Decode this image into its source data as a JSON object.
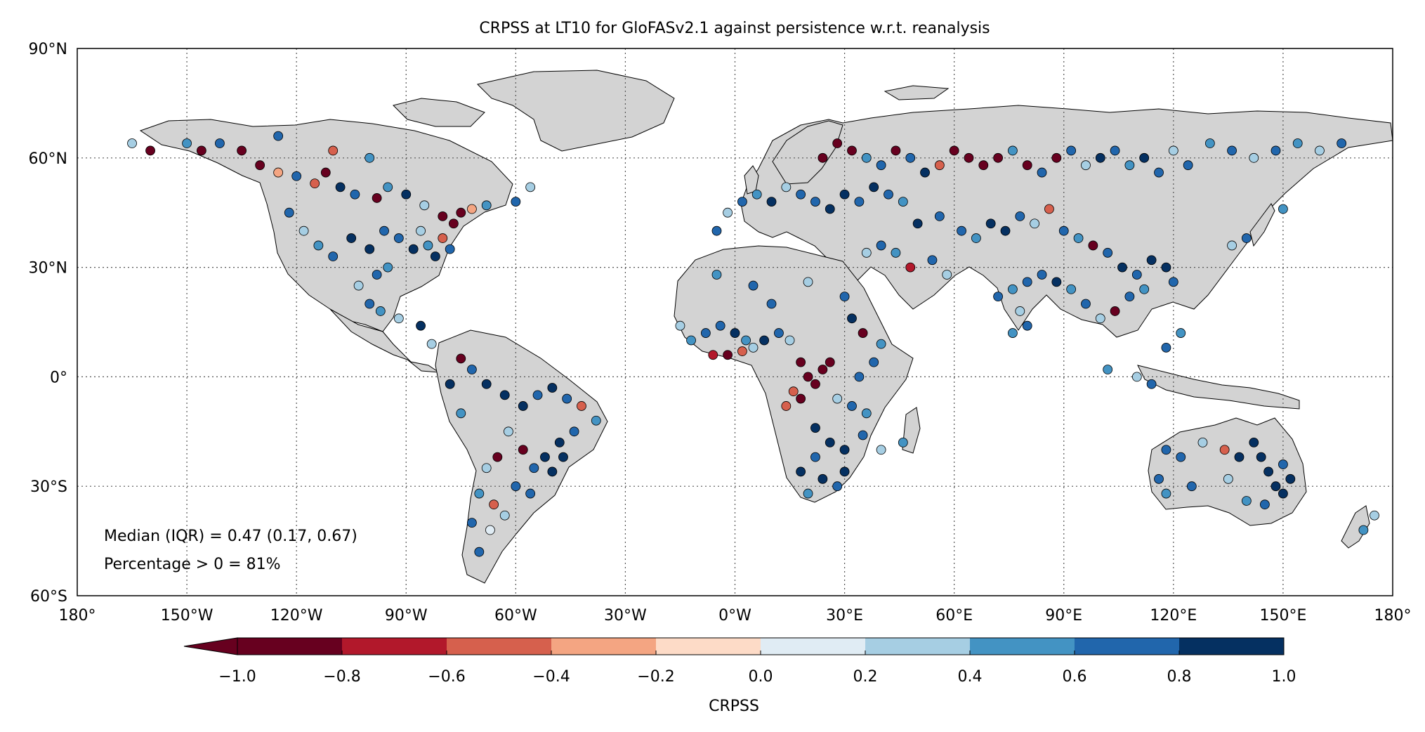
{
  "title": "CRPSS at LT10 for GloFASv2.1 against persistence w.r.t. reanalysis",
  "map": {
    "lat_ticks": [
      "90°N",
      "60°N",
      "30°N",
      "0°",
      "30°S",
      "60°S"
    ],
    "lon_ticks": [
      "180°",
      "150°W",
      "120°W",
      "90°W",
      "60°W",
      "30°W",
      "0°W",
      "30°E",
      "60°E",
      "90°E",
      "120°E",
      "150°E",
      "180°"
    ],
    "land_color": "#d3d3d3",
    "grid": "dotted"
  },
  "stats": {
    "median_line": "Median (IQR) = 0.47 (0.17, 0.67)",
    "percentage_line": "Percentage > 0 = 81%"
  },
  "colorbar": {
    "label": "CRPSS",
    "ticks": [
      "−1.0",
      "−0.8",
      "−0.6",
      "−0.4",
      "−0.2",
      "0.0",
      "0.2",
      "0.4",
      "0.6",
      "0.8",
      "1.0"
    ],
    "colors": [
      "#67001f",
      "#b2182b",
      "#d6604d",
      "#f4a582",
      "#fddbc7",
      "#e0ecf4",
      "#a6cee3",
      "#4393c3",
      "#2166ac",
      "#053061"
    ],
    "extend": "min"
  },
  "chart_data": {
    "type": "scatter",
    "title": "CRPSS at LT10 for GloFASv2.1 against persistence w.r.t. reanalysis",
    "xlim": [
      -180,
      180
    ],
    "ylim": [
      -60,
      90
    ],
    "colorbar_range": [
      -1.0,
      1.0
    ],
    "median": 0.47,
    "iqr": [
      0.17,
      0.67
    ],
    "percentage_positive": 81,
    "series": [
      {
        "points": [
          [
            -150,
            64,
            0.5
          ],
          [
            -146,
            62,
            -0.9
          ],
          [
            -141,
            64,
            0.7
          ],
          [
            -135,
            62,
            -1.0
          ],
          [
            -130,
            58,
            -0.9
          ],
          [
            -125,
            56,
            -0.3
          ],
          [
            -120,
            55,
            0.6
          ],
          [
            -115,
            53,
            -0.5
          ],
          [
            -112,
            56,
            -0.8
          ],
          [
            -108,
            52,
            0.9
          ],
          [
            -104,
            50,
            0.7
          ],
          [
            -98,
            49,
            -0.9
          ],
          [
            -95,
            52,
            0.5
          ],
          [
            -90,
            50,
            0.8
          ],
          [
            -85,
            47,
            0.3
          ],
          [
            -80,
            44,
            -0.9
          ],
          [
            -77,
            42,
            -1.0
          ],
          [
            -75,
            45,
            -0.9
          ],
          [
            -72,
            46,
            -0.3
          ],
          [
            -68,
            47,
            0.5
          ],
          [
            -122,
            45,
            0.6
          ],
          [
            -118,
            40,
            0.4
          ],
          [
            -114,
            36,
            0.5
          ],
          [
            -110,
            33,
            0.7
          ],
          [
            -105,
            38,
            0.8
          ],
          [
            -100,
            35,
            0.9
          ],
          [
            -96,
            40,
            0.6
          ],
          [
            -92,
            38,
            0.7
          ],
          [
            -88,
            35,
            0.9
          ],
          [
            -84,
            36,
            0.5
          ],
          [
            -86,
            40,
            0.4
          ],
          [
            -82,
            33,
            0.8
          ],
          [
            -80,
            38,
            -0.6
          ],
          [
            -78,
            35,
            0.6
          ],
          [
            -95,
            30,
            0.5
          ],
          [
            -98,
            28,
            0.7
          ],
          [
            -103,
            25,
            0.4
          ],
          [
            -100,
            20,
            0.6
          ],
          [
            -97,
            18,
            0.5
          ],
          [
            -92,
            16,
            0.3
          ],
          [
            -86,
            14,
            0.8
          ],
          [
            -83,
            9,
            0.4
          ],
          [
            -75,
            5,
            -0.8
          ],
          [
            -72,
            2,
            0.7
          ],
          [
            -68,
            -2,
            0.9
          ],
          [
            -63,
            -5,
            1.0
          ],
          [
            -58,
            -8,
            0.9
          ],
          [
            -54,
            -5,
            0.7
          ],
          [
            -50,
            -3,
            0.8
          ],
          [
            -46,
            -6,
            0.6
          ],
          [
            -42,
            -8,
            -0.4
          ],
          [
            -38,
            -12,
            0.5
          ],
          [
            -44,
            -15,
            0.7
          ],
          [
            -48,
            -18,
            0.8
          ],
          [
            -52,
            -22,
            0.9
          ],
          [
            -55,
            -25,
            0.6
          ],
          [
            -58,
            -20,
            -0.8
          ],
          [
            -62,
            -15,
            0.4
          ],
          [
            -65,
            -22,
            -0.9
          ],
          [
            -68,
            -25,
            0.3
          ],
          [
            -70,
            -32,
            0.5
          ],
          [
            -66,
            -35,
            -0.5
          ],
          [
            -63,
            -38,
            0.4
          ],
          [
            -67,
            -42,
            0.2
          ],
          [
            -70,
            -48,
            0.6
          ],
          [
            -72,
            -40,
            0.7
          ],
          [
            -75,
            -10,
            0.5
          ],
          [
            -78,
            -2,
            0.8
          ],
          [
            -60,
            -30,
            0.7
          ],
          [
            -56,
            -32,
            0.6
          ],
          [
            -50,
            -26,
            0.8
          ],
          [
            -47,
            -22,
            0.9
          ],
          [
            -8,
            12,
            0.6
          ],
          [
            -4,
            14,
            0.7
          ],
          [
            0,
            12,
            0.9
          ],
          [
            3,
            10,
            0.5
          ],
          [
            -6,
            6,
            -0.7
          ],
          [
            -2,
            6,
            -0.9
          ],
          [
            2,
            7,
            -0.6
          ],
          [
            5,
            8,
            0.4
          ],
          [
            8,
            10,
            0.8
          ],
          [
            12,
            12,
            0.6
          ],
          [
            15,
            10,
            0.3
          ],
          [
            -12,
            10,
            0.5
          ],
          [
            -15,
            14,
            0.3
          ],
          [
            10,
            20,
            0.6
          ],
          [
            5,
            25,
            0.7
          ],
          [
            -5,
            28,
            0.5
          ],
          [
            20,
            26,
            0.4
          ],
          [
            30,
            22,
            0.6
          ],
          [
            32,
            16,
            0.8
          ],
          [
            35,
            12,
            -0.8
          ],
          [
            40,
            9,
            0.5
          ],
          [
            38,
            4,
            0.6
          ],
          [
            34,
            0,
            0.7
          ],
          [
            18,
            4,
            -1.0
          ],
          [
            20,
            0,
            -0.9
          ],
          [
            22,
            -2,
            -0.8
          ],
          [
            24,
            2,
            -1.0
          ],
          [
            26,
            4,
            -0.9
          ],
          [
            16,
            -4,
            -0.5
          ],
          [
            14,
            -8,
            -0.6
          ],
          [
            18,
            -6,
            -0.8
          ],
          [
            28,
            -6,
            0.4
          ],
          [
            32,
            -8,
            0.7
          ],
          [
            36,
            -10,
            0.5
          ],
          [
            22,
            -14,
            0.8
          ],
          [
            26,
            -18,
            0.9
          ],
          [
            30,
            -20,
            1.0
          ],
          [
            22,
            -22,
            0.7
          ],
          [
            18,
            -26,
            0.8
          ],
          [
            24,
            -28,
            0.9
          ],
          [
            28,
            -30,
            0.6
          ],
          [
            30,
            -26,
            1.0
          ],
          [
            20,
            -32,
            0.5
          ],
          [
            35,
            -16,
            0.6
          ],
          [
            40,
            -20,
            0.4
          ],
          [
            46,
            -18,
            0.5
          ],
          [
            -5,
            40,
            0.7
          ],
          [
            -2,
            45,
            0.4
          ],
          [
            2,
            48,
            0.6
          ],
          [
            6,
            50,
            0.5
          ],
          [
            10,
            48,
            0.8
          ],
          [
            14,
            52,
            0.3
          ],
          [
            18,
            50,
            0.6
          ],
          [
            22,
            48,
            0.7
          ],
          [
            26,
            46,
            0.9
          ],
          [
            30,
            50,
            0.8
          ],
          [
            34,
            48,
            0.6
          ],
          [
            38,
            52,
            0.9
          ],
          [
            42,
            50,
            0.7
          ],
          [
            46,
            48,
            0.5
          ],
          [
            24,
            60,
            -0.9
          ],
          [
            28,
            64,
            -0.8
          ],
          [
            32,
            62,
            -1.0
          ],
          [
            36,
            60,
            0.5
          ],
          [
            40,
            58,
            0.7
          ],
          [
            44,
            62,
            -0.9
          ],
          [
            48,
            60,
            0.6
          ],
          [
            52,
            56,
            0.8
          ],
          [
            56,
            58,
            -0.4
          ],
          [
            60,
            62,
            -0.9
          ],
          [
            64,
            60,
            -1.0
          ],
          [
            68,
            58,
            -0.8
          ],
          [
            72,
            60,
            -0.9
          ],
          [
            76,
            62,
            0.5
          ],
          [
            80,
            58,
            -1.0
          ],
          [
            84,
            56,
            0.6
          ],
          [
            88,
            60,
            -0.8
          ],
          [
            92,
            62,
            0.7
          ],
          [
            96,
            58,
            0.4
          ],
          [
            100,
            60,
            0.8
          ],
          [
            104,
            62,
            0.6
          ],
          [
            108,
            58,
            0.5
          ],
          [
            112,
            60,
            0.9
          ],
          [
            116,
            56,
            0.7
          ],
          [
            120,
            62,
            0.4
          ],
          [
            124,
            58,
            0.6
          ],
          [
            130,
            64,
            0.5
          ],
          [
            136,
            62,
            0.7
          ],
          [
            142,
            60,
            0.3
          ],
          [
            148,
            62,
            0.6
          ],
          [
            154,
            64,
            0.5
          ],
          [
            160,
            62,
            0.4
          ],
          [
            166,
            64,
            0.6
          ],
          [
            50,
            42,
            0.8
          ],
          [
            56,
            44,
            0.6
          ],
          [
            62,
            40,
            0.7
          ],
          [
            66,
            38,
            0.5
          ],
          [
            70,
            42,
            0.8
          ],
          [
            74,
            40,
            0.9
          ],
          [
            78,
            44,
            0.6
          ],
          [
            82,
            42,
            0.4
          ],
          [
            86,
            46,
            -0.5
          ],
          [
            90,
            40,
            0.7
          ],
          [
            94,
            38,
            0.5
          ],
          [
            98,
            36,
            -0.8
          ],
          [
            102,
            34,
            0.6
          ],
          [
            106,
            30,
            0.9
          ],
          [
            110,
            28,
            0.7
          ],
          [
            114,
            32,
            0.8
          ],
          [
            118,
            30,
            1.0
          ],
          [
            120,
            26,
            0.6
          ],
          [
            112,
            24,
            0.5
          ],
          [
            108,
            22,
            0.7
          ],
          [
            104,
            18,
            -0.9
          ],
          [
            100,
            16,
            0.4
          ],
          [
            96,
            20,
            0.6
          ],
          [
            92,
            24,
            0.5
          ],
          [
            88,
            26,
            0.8
          ],
          [
            84,
            28,
            0.6
          ],
          [
            80,
            26,
            0.7
          ],
          [
            76,
            24,
            0.5
          ],
          [
            72,
            22,
            0.6
          ],
          [
            78,
            18,
            0.4
          ],
          [
            80,
            14,
            0.7
          ],
          [
            76,
            12,
            0.5
          ],
          [
            58,
            28,
            0.3
          ],
          [
            54,
            32,
            0.6
          ],
          [
            48,
            30,
            -0.7
          ],
          [
            44,
            34,
            0.5
          ],
          [
            40,
            36,
            0.6
          ],
          [
            36,
            34,
            0.4
          ],
          [
            118,
            8,
            0.6
          ],
          [
            122,
            12,
            0.5
          ],
          [
            110,
            0,
            0.4
          ],
          [
            114,
            -2,
            0.6
          ],
          [
            102,
            2,
            0.5
          ],
          [
            118,
            -20,
            0.7
          ],
          [
            122,
            -22,
            0.6
          ],
          [
            128,
            -18,
            0.4
          ],
          [
            134,
            -20,
            -0.6
          ],
          [
            138,
            -22,
            0.8
          ],
          [
            142,
            -18,
            0.9
          ],
          [
            144,
            -22,
            1.0
          ],
          [
            146,
            -26,
            0.9
          ],
          [
            148,
            -30,
            0.8
          ],
          [
            150,
            -32,
            1.0
          ],
          [
            145,
            -35,
            0.7
          ],
          [
            140,
            -34,
            0.5
          ],
          [
            135,
            -28,
            0.4
          ],
          [
            125,
            -30,
            0.6
          ],
          [
            118,
            -32,
            0.5
          ],
          [
            116,
            -28,
            0.7
          ],
          [
            152,
            -28,
            0.9
          ],
          [
            150,
            -24,
            0.6
          ],
          [
            172,
            -42,
            0.5
          ],
          [
            175,
            -38,
            0.4
          ],
          [
            150,
            46,
            0.5
          ],
          [
            140,
            38,
            0.6
          ],
          [
            136,
            36,
            0.4
          ],
          [
            -56,
            52,
            0.3
          ],
          [
            -60,
            48,
            0.7
          ],
          [
            -100,
            60,
            0.5
          ],
          [
            -110,
            62,
            -0.4
          ],
          [
            -125,
            66,
            0.6
          ],
          [
            -160,
            62,
            -0.8
          ],
          [
            -165,
            64,
            0.3
          ]
        ]
      }
    ]
  }
}
